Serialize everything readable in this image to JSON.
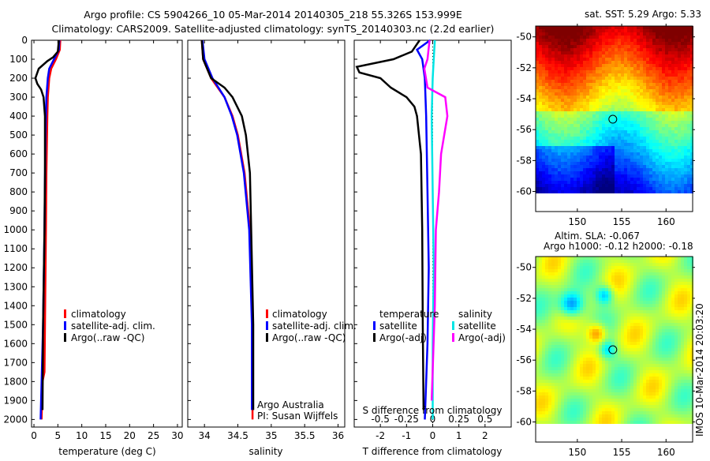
{
  "title_line1": "Argo profile: CS 5904266_10 05-Mar-2014 20140305_218 55.326S 153.999E",
  "title_line2": "Climatology: CARS2009. Satellite-adjusted climatology: synTS_20140303.nc (2.2d earlier)",
  "footer_stamp": "IMOS 10-Mar-2014 20:03:20",
  "colors": {
    "climatology": "#ff0000",
    "satellite": "#0000ff",
    "argo": "#000000",
    "sal_satellite": "#00e5e5",
    "sal_argo": "#ff00ff"
  },
  "chart_data": [
    {
      "type": "line",
      "id": "temperature",
      "xlabel": "temperature (deg C)",
      "ylabel": "depth",
      "xlim": [
        -0.5,
        31
      ],
      "ylim": [
        2040,
        0
      ],
      "xticks": [
        "0",
        "5",
        "10",
        "15",
        "20",
        "25",
        "30"
      ],
      "xtick_values": [
        0,
        5,
        10,
        15,
        20,
        25,
        30
      ],
      "yticks": [
        "0",
        "100",
        "200",
        "300",
        "400",
        "500",
        "600",
        "700",
        "800",
        "900",
        "1000",
        "1100",
        "1200",
        "1300",
        "1400",
        "1500",
        "1600",
        "1700",
        "1800",
        "1900",
        "2000"
      ],
      "legend": [
        "climatology",
        "satellite-adj. clim.",
        "Argo(..raw -QC)"
      ],
      "series": [
        {
          "name": "climatology",
          "color": "#ff0000",
          "depth": [
            0,
            50,
            100,
            150,
            200,
            300,
            400,
            700,
            1000,
            1500,
            1750,
            1800,
            2000
          ],
          "values": [
            5.5,
            5.4,
            4.6,
            3.6,
            3.2,
            2.9,
            2.8,
            2.6,
            2.5,
            2.3,
            2.2,
            1.8,
            1.6
          ]
        },
        {
          "name": "satellite-adj. clim.",
          "color": "#0000ff",
          "depth": [
            0,
            50,
            100,
            150,
            200,
            300,
            500,
            1000,
            1500,
            2000
          ],
          "values": [
            5.3,
            5.2,
            4.2,
            3.2,
            2.9,
            2.6,
            2.4,
            2.2,
            1.9,
            1.4
          ]
        },
        {
          "name": "Argo(..raw -QC)",
          "color": "#000000",
          "depth": [
            0,
            60,
            90,
            110,
            150,
            200,
            230,
            260,
            300,
            400,
            700,
            1000,
            1500,
            1950
          ],
          "values": [
            5.2,
            5.0,
            4.0,
            2.8,
            1.0,
            0.3,
            0.7,
            1.5,
            2.0,
            2.3,
            2.3,
            2.2,
            1.9,
            1.8
          ]
        }
      ]
    },
    {
      "type": "line",
      "id": "salinity",
      "xlabel": "salinity",
      "ylabel": "depth",
      "xlim": [
        33.75,
        36.1
      ],
      "ylim": [
        2040,
        0
      ],
      "xticks": [
        "34",
        "34.5",
        "35",
        "35.5",
        "36"
      ],
      "xtick_values": [
        34,
        34.5,
        35,
        35.5,
        36
      ],
      "legend": [
        "climatology",
        "satellite-adj. clim.",
        "Argo(..raw -QC)"
      ],
      "annotation": [
        "Argo Australia",
        "PI: Susan Wijffels"
      ],
      "series": [
        {
          "name": "climatology",
          "color": "#ff0000",
          "depth": [
            0,
            100,
            200,
            300,
            400,
            500,
            700,
            1000,
            1500,
            2000
          ],
          "values": [
            33.96,
            33.98,
            34.1,
            34.3,
            34.42,
            34.5,
            34.6,
            34.68,
            34.72,
            34.72
          ]
        },
        {
          "name": "satellite-adj. clim.",
          "color": "#0000ff",
          "depth": [
            0,
            100,
            200,
            300,
            400,
            500,
            700,
            1000,
            1500,
            1950
          ],
          "values": [
            33.97,
            34.0,
            34.12,
            34.3,
            34.41,
            34.49,
            34.59,
            34.67,
            34.71,
            34.71
          ]
        },
        {
          "name": "Argo(..raw -QC)",
          "color": "#000000",
          "depth": [
            0,
            100,
            200,
            250,
            300,
            400,
            500,
            700,
            1000,
            1500,
            1950
          ],
          "values": [
            33.96,
            33.98,
            34.1,
            34.3,
            34.42,
            34.56,
            34.62,
            34.68,
            34.7,
            34.73,
            34.73
          ]
        }
      ]
    },
    {
      "type": "line",
      "id": "difference",
      "xlabel": "T difference from climatology",
      "x2label": "S difference from climatology",
      "xlim": [
        -3,
        3
      ],
      "ylim": [
        2040,
        0
      ],
      "xticks": [
        "-2",
        "-1",
        "0",
        "1",
        "2"
      ],
      "xtick_values": [
        -2,
        -1,
        0,
        1,
        2
      ],
      "x2ticks": [
        "-0.5",
        "-0.25",
        "0",
        "0.25",
        "0.5"
      ],
      "x2tick_values": [
        -0.5,
        -0.25,
        0,
        0.25,
        0.5
      ],
      "legend_temperature": {
        "title": "temperature",
        "items": [
          "satellite",
          "Argo(-adj)"
        ]
      },
      "legend_salinity": {
        "title": "salinity",
        "items": [
          "satellite",
          "Argo(-adj)"
        ]
      },
      "series": [
        {
          "name": "temperature satellite",
          "color": "#0000ff",
          "axis": "T",
          "depth": [
            0,
            50,
            100,
            200,
            400,
            800,
            1200,
            1600,
            2000
          ],
          "values": [
            -0.1,
            -0.6,
            -0.4,
            -0.3,
            -0.25,
            -0.2,
            -0.15,
            -0.2,
            -0.3
          ]
        },
        {
          "name": "temperature Argo(-adj)",
          "color": "#000000",
          "axis": "T",
          "depth": [
            0,
            60,
            100,
            140,
            170,
            200,
            250,
            300,
            350,
            400,
            600,
            1000,
            1500,
            1950
          ],
          "values": [
            -0.5,
            -0.8,
            -1.5,
            -2.9,
            -2.8,
            -2.0,
            -1.6,
            -1.0,
            -0.7,
            -0.6,
            -0.45,
            -0.4,
            -0.38,
            -0.35
          ]
        },
        {
          "name": "salinity satellite",
          "color": "#00e5e5",
          "axis": "S",
          "depth": [
            0,
            100,
            200,
            400,
            800,
            1200,
            1600,
            2000
          ],
          "values": [
            0.02,
            0.01,
            0.0,
            -0.01,
            0.0,
            0.01,
            0.0,
            0.0
          ]
        },
        {
          "name": "salinity Argo(-adj)",
          "color": "#ff00ff",
          "axis": "S",
          "depth": [
            0,
            100,
            150,
            250,
            300,
            400,
            600,
            800,
            1000,
            1400,
            1900
          ],
          "values": [
            -0.03,
            -0.05,
            -0.08,
            -0.05,
            0.12,
            0.14,
            0.08,
            0.06,
            0.03,
            0.02,
            -0.01
          ]
        }
      ]
    },
    {
      "type": "heatmap",
      "id": "sst-map",
      "title": "sat. SST: 5.29 Argo: 5.33",
      "xticks": [
        "150",
        "155",
        "160"
      ],
      "xtick_values": [
        150,
        155,
        160
      ],
      "yticks": [
        "-50",
        "-52",
        "-54",
        "-56",
        "-58",
        "-60"
      ],
      "ytick_values": [
        -50,
        -52,
        -54,
        -56,
        -58,
        -60
      ],
      "xlim": [
        145.3,
        163
      ],
      "ylim": [
        -61.3,
        -49.3
      ],
      "marker": {
        "lon": 153.999,
        "lat": -55.326
      }
    },
    {
      "type": "heatmap",
      "id": "sla-map",
      "title_line1": "Altim. SLA: -0.067",
      "title_line2": "Argo h1000: -0.12 h2000: -0.18",
      "xticks": [
        "150",
        "155",
        "160"
      ],
      "xtick_values": [
        150,
        155,
        160
      ],
      "yticks": [
        "-50",
        "-52",
        "-54",
        "-56",
        "-58",
        "-60"
      ],
      "ytick_values": [
        -50,
        -52,
        -54,
        -56,
        -58,
        -60
      ],
      "xlim": [
        145.3,
        163
      ],
      "ylim": [
        -61.3,
        -49.3
      ],
      "marker": {
        "lon": 153.999,
        "lat": -55.326
      }
    }
  ]
}
